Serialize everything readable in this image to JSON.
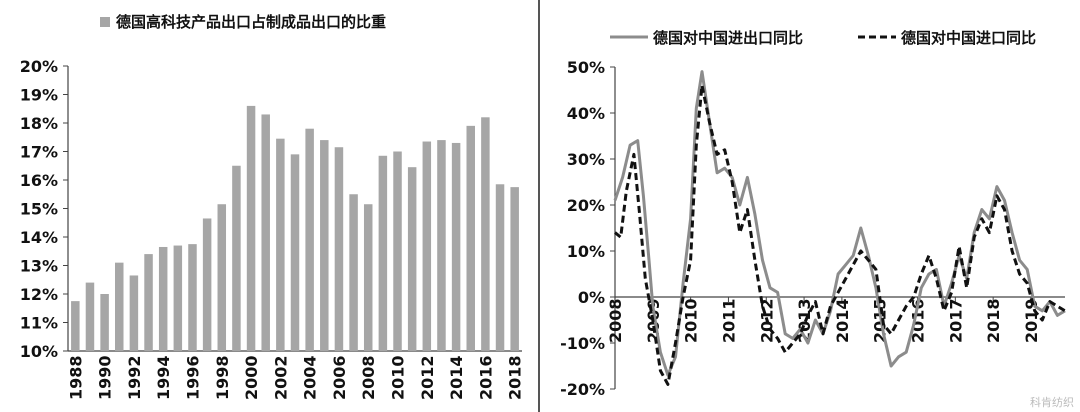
{
  "charts": {
    "left": {
      "legend_label": "德国高科技产品出口占制成品出口的比重",
      "bar_color": "#a6a6a6"
    },
    "right": {
      "legend_solid": "德国对中国进出口同比",
      "legend_dashed": "德国对中国进口同比",
      "solid_color": "#8c8c8c",
      "dashed_color": "#111111"
    }
  },
  "watermark": "科肯纺织",
  "chart_data": [
    {
      "type": "bar",
      "title": "",
      "legend": "德国高科技产品出口占制成品出口的比重",
      "legend_position": "top",
      "categories": [
        "1988",
        "1989",
        "1990",
        "1991",
        "1992",
        "1993",
        "1994",
        "1995",
        "1996",
        "1997",
        "1998",
        "1999",
        "2000",
        "2001",
        "2002",
        "2003",
        "2004",
        "2005",
        "2006",
        "2007",
        "2008",
        "2009",
        "2010",
        "2011",
        "2012",
        "2013",
        "2014",
        "2015",
        "2016",
        "2017",
        "2018"
      ],
      "x_tick_labels": [
        "1988",
        "1990",
        "1992",
        "1994",
        "1996",
        "1998",
        "2000",
        "2002",
        "2004",
        "2006",
        "2008",
        "2010",
        "2012",
        "2014",
        "2016",
        "2018"
      ],
      "values": [
        11.75,
        12.4,
        12.0,
        13.1,
        12.65,
        13.4,
        13.65,
        13.7,
        13.75,
        14.65,
        15.15,
        16.5,
        18.6,
        18.3,
        17.45,
        16.9,
        17.8,
        17.4,
        17.15,
        15.5,
        15.15,
        16.85,
        17.0,
        16.45,
        17.35,
        17.4,
        17.3,
        17.9,
        18.2,
        15.85,
        15.75
      ],
      "ylim": [
        10,
        20
      ],
      "y_ticks": [
        "10%",
        "11%",
        "12%",
        "13%",
        "14%",
        "15%",
        "16%",
        "17%",
        "18%",
        "19%",
        "20%"
      ],
      "grid": false
    },
    {
      "type": "line",
      "title": "",
      "legend_position": "top",
      "ylim": [
        -20,
        50
      ],
      "y_ticks": [
        "-20%",
        "-10%",
        "0%",
        "10%",
        "20%",
        "30%",
        "40%",
        "50%"
      ],
      "x_range": [
        2008,
        2019.9
      ],
      "x_tick_labels": [
        "2008",
        "2009",
        "2010",
        "2011",
        "2012",
        "2013",
        "2014",
        "2015",
        "2016",
        "2017",
        "2018",
        "2019"
      ],
      "grid": false,
      "series": [
        {
          "name": "德国对中国进出口同比",
          "style": "solid",
          "x": [
            2008.0,
            2008.2,
            2008.4,
            2008.6,
            2008.75,
            2008.9,
            2009.0,
            2009.2,
            2009.4,
            2009.6,
            2009.8,
            2010.0,
            2010.15,
            2010.3,
            2010.5,
            2010.7,
            2010.9,
            2011.1,
            2011.3,
            2011.5,
            2011.7,
            2011.9,
            2012.1,
            2012.3,
            2012.5,
            2012.7,
            2012.9,
            2013.1,
            2013.3,
            2013.5,
            2013.7,
            2013.9,
            2014.1,
            2014.3,
            2014.5,
            2014.7,
            2014.9,
            2015.1,
            2015.3,
            2015.5,
            2015.7,
            2015.9,
            2016.1,
            2016.3,
            2016.5,
            2016.7,
            2016.9,
            2017.1,
            2017.3,
            2017.5,
            2017.7,
            2017.9,
            2018.1,
            2018.3,
            2018.5,
            2018.7,
            2018.9,
            2019.1,
            2019.3,
            2019.5,
            2019.7,
            2019.9
          ],
          "y": [
            21,
            26,
            33,
            34,
            22,
            8,
            -2,
            -12,
            -17,
            -13,
            3,
            17,
            41,
            49,
            38,
            27,
            28,
            26,
            20,
            26,
            18,
            8,
            2,
            1,
            -8,
            -9,
            -7,
            -10,
            -5,
            -8,
            -3,
            5,
            7,
            9,
            15,
            9,
            2,
            -8,
            -15,
            -13,
            -12,
            -6,
            2,
            5,
            6,
            -2,
            3,
            9,
            4,
            14,
            19,
            17,
            24,
            21,
            14,
            8,
            6,
            -2,
            -3,
            -1,
            -4,
            -3
          ]
        },
        {
          "name": "德国对中国进口同比",
          "style": "dashed",
          "x": [
            2008.0,
            2008.15,
            2008.3,
            2008.5,
            2008.65,
            2008.8,
            2009.0,
            2009.2,
            2009.4,
            2009.6,
            2009.8,
            2010.0,
            2010.15,
            2010.3,
            2010.5,
            2010.7,
            2010.9,
            2011.1,
            2011.3,
            2011.5,
            2011.7,
            2011.9,
            2012.1,
            2012.3,
            2012.5,
            2012.7,
            2012.9,
            2013.1,
            2013.3,
            2013.5,
            2013.7,
            2013.9,
            2014.1,
            2014.3,
            2014.5,
            2014.7,
            2014.9,
            2015.1,
            2015.3,
            2015.5,
            2015.7,
            2015.9,
            2016.1,
            2016.3,
            2016.5,
            2016.7,
            2016.9,
            2017.1,
            2017.3,
            2017.5,
            2017.7,
            2017.9,
            2018.1,
            2018.3,
            2018.5,
            2018.7,
            2018.9,
            2019.1,
            2019.3,
            2019.5,
            2019.7,
            2019.9
          ],
          "y": [
            14,
            13,
            23,
            31,
            18,
            4,
            -5,
            -16,
            -19,
            -10,
            0,
            8,
            33,
            46,
            38,
            31,
            32,
            25,
            14,
            19,
            8,
            -2,
            -7,
            -9,
            -12,
            -10,
            -8,
            -4,
            -1,
            -8,
            -2,
            1,
            4,
            7,
            10,
            8,
            6,
            -6,
            -8,
            -5,
            -2,
            0,
            5,
            9,
            4,
            -3,
            1,
            11,
            2,
            13,
            17,
            14,
            22,
            19,
            10,
            5,
            3,
            -3,
            -5,
            -1,
            -2,
            -3
          ]
        }
      ]
    }
  ]
}
